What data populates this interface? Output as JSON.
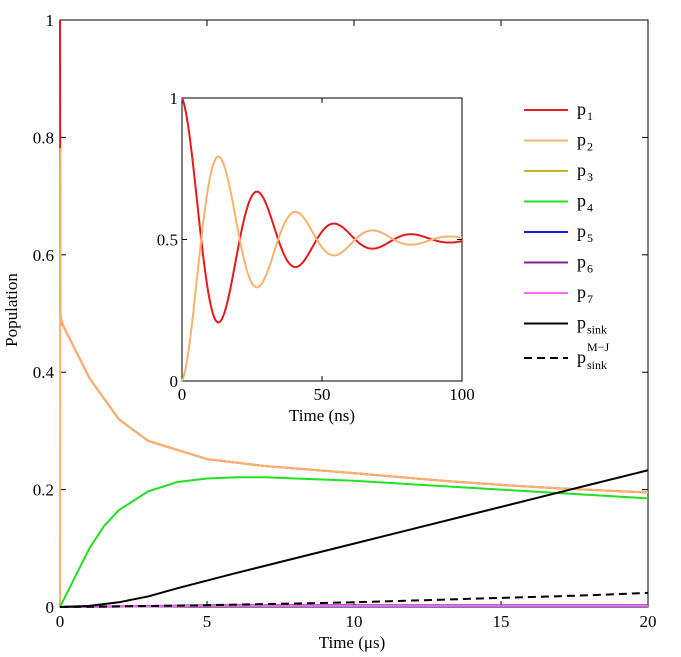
{
  "chart_data": [
    {
      "type": "line",
      "title": "",
      "xlabel": "Time (μs)",
      "ylabel": "Population",
      "xlim": [
        0,
        20
      ],
      "ylim": [
        0,
        1
      ],
      "xticks": [
        "0",
        "5",
        "10",
        "15",
        "20"
      ],
      "yticks": [
        "0",
        "0.2",
        "0.4",
        "0.6",
        "0.8",
        "1"
      ],
      "grid": false,
      "legend": "right",
      "series": [
        {
          "name": "p",
          "sub": "1",
          "sup": "",
          "color": "#e41a1c",
          "dash": "",
          "x": [
            0,
            0.01,
            0.02,
            0.05,
            0.1,
            0.5,
            1,
            2,
            3,
            5,
            7,
            10,
            13,
            15,
            17,
            20
          ],
          "y": [
            1.0,
            0.5,
            0.49,
            0.485,
            0.48,
            0.44,
            0.39,
            0.32,
            0.283,
            0.252,
            0.24,
            0.228,
            0.215,
            0.208,
            0.202,
            0.195
          ]
        },
        {
          "name": "p",
          "sub": "2",
          "sup": "",
          "color": "#f9b26d",
          "dash": "",
          "x": [
            0,
            0.01,
            0.02,
            0.05,
            0.1,
            0.5,
            1,
            2,
            3,
            5,
            7,
            10,
            13,
            15,
            17,
            20
          ],
          "y": [
            0.0,
            0.78,
            0.5,
            0.49,
            0.48,
            0.44,
            0.39,
            0.32,
            0.283,
            0.252,
            0.24,
            0.228,
            0.215,
            0.208,
            0.202,
            0.195
          ]
        },
        {
          "name": "p",
          "sub": "3",
          "sup": "",
          "color": "#c8b42a",
          "dash": "",
          "x": [
            0,
            5,
            10,
            15,
            20
          ],
          "y": [
            0.0,
            0.002,
            0.002,
            0.002,
            0.002
          ]
        },
        {
          "name": "p",
          "sub": "4",
          "sup": "",
          "color": "#22e022",
          "dash": "",
          "x": [
            0,
            0.5,
            1,
            1.5,
            2,
            3,
            4,
            5,
            6,
            7,
            8,
            10,
            12,
            14,
            16,
            18,
            20
          ],
          "y": [
            0.0,
            0.05,
            0.1,
            0.138,
            0.165,
            0.197,
            0.213,
            0.219,
            0.221,
            0.221,
            0.219,
            0.215,
            0.209,
            0.203,
            0.197,
            0.191,
            0.185
          ]
        },
        {
          "name": "p",
          "sub": "5",
          "sup": "",
          "color": "#1a1ae0",
          "dash": "",
          "x": [
            0,
            5,
            10,
            15,
            20
          ],
          "y": [
            0.0,
            0.002,
            0.002,
            0.002,
            0.002
          ]
        },
        {
          "name": "p",
          "sub": "6",
          "sup": "",
          "color": "#8e1ea0",
          "dash": "",
          "x": [
            0,
            5,
            10,
            15,
            20
          ],
          "y": [
            0.0,
            0.003,
            0.003,
            0.003,
            0.003
          ]
        },
        {
          "name": "p",
          "sub": "7",
          "sup": "",
          "color": "#f06cf0",
          "dash": "",
          "x": [
            0,
            5,
            10,
            15,
            20
          ],
          "y": [
            0.0,
            0.002,
            0.002,
            0.002,
            0.002
          ]
        },
        {
          "name": "p",
          "sub": "sink",
          "sup": "",
          "color": "#000000",
          "dash": "",
          "x": [
            0,
            1,
            2,
            3,
            4,
            5,
            6,
            8,
            10,
            12,
            14,
            16,
            18,
            20
          ],
          "y": [
            0.0,
            0.002,
            0.008,
            0.018,
            0.032,
            0.045,
            0.058,
            0.083,
            0.108,
            0.133,
            0.158,
            0.183,
            0.208,
            0.233
          ]
        },
        {
          "name": "p",
          "sub": "sink",
          "sup": "M−J",
          "color": "#000000",
          "dash": "8,5",
          "x": [
            0,
            2,
            5,
            8,
            10,
            12,
            14,
            16,
            18,
            20
          ],
          "y": [
            0.0,
            0.001,
            0.003,
            0.006,
            0.008,
            0.011,
            0.014,
            0.017,
            0.02,
            0.024
          ]
        }
      ]
    },
    {
      "type": "line",
      "title": "",
      "xlabel": "Time (ns)",
      "ylabel": "",
      "xlim": [
        0,
        100
      ],
      "ylim": [
        0,
        1
      ],
      "xticks": [
        "0",
        "50",
        "100"
      ],
      "yticks": [
        "0",
        "0.5",
        "1"
      ],
      "grid": false,
      "series": [
        {
          "name": "p1-inset",
          "color": "#e41a1c",
          "osc": "cos"
        },
        {
          "name": "p2-inset",
          "color": "#f9b26d",
          "osc": "sin"
        }
      ],
      "damping_tau_ns": 25,
      "period_ns": 27.5
    }
  ]
}
